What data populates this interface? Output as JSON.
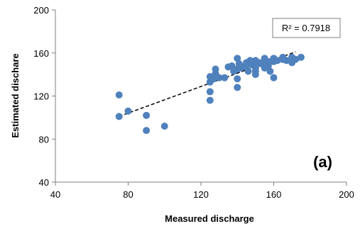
{
  "chart_data": {
    "type": "scatter",
    "xlabel": "Measured discharge",
    "ylabel": "Estimated dischare",
    "xlim": [
      40,
      200
    ],
    "ylim": [
      40,
      200
    ],
    "xticks": [
      40,
      80,
      120,
      160,
      200
    ],
    "yticks": [
      40,
      80,
      120,
      160,
      200
    ],
    "grid": false,
    "panel_label": "(a)",
    "annotation": "R² = 0.7918",
    "colors": {
      "points": "#4F81BD",
      "trendline": "#000000",
      "axis": "#7f7f7f"
    },
    "trendline": {
      "style": "dashed",
      "x": [
        75,
        172
      ],
      "y": [
        101,
        161
      ]
    },
    "points": {
      "x": [
        75,
        75,
        80,
        90,
        90,
        100,
        125,
        125,
        125,
        125,
        126,
        127,
        128,
        128,
        130,
        133,
        135,
        137,
        138,
        140,
        140,
        140,
        141,
        143,
        145,
        146,
        147,
        148,
        150,
        150,
        150,
        151,
        152,
        155,
        155,
        157,
        158,
        158,
        160,
        160,
        162,
        165,
        167,
        170,
        172,
        175,
        145,
        150,
        155,
        160,
        165,
        170,
        140,
        148,
        153,
        142,
        156
      ],
      "y": [
        121,
        101,
        106,
        102,
        88,
        92,
        116,
        124,
        133,
        138,
        136,
        136,
        141,
        145,
        137,
        137,
        147,
        148,
        143,
        128,
        136,
        155,
        150,
        147,
        151,
        143,
        153,
        149,
        140,
        143,
        153,
        150,
        151,
        146,
        153,
        148,
        143,
        152,
        137,
        155,
        153,
        154,
        153,
        156,
        154,
        156,
        148,
        146,
        155,
        152,
        156,
        151,
        145,
        152,
        150,
        146,
        150
      ]
    }
  }
}
